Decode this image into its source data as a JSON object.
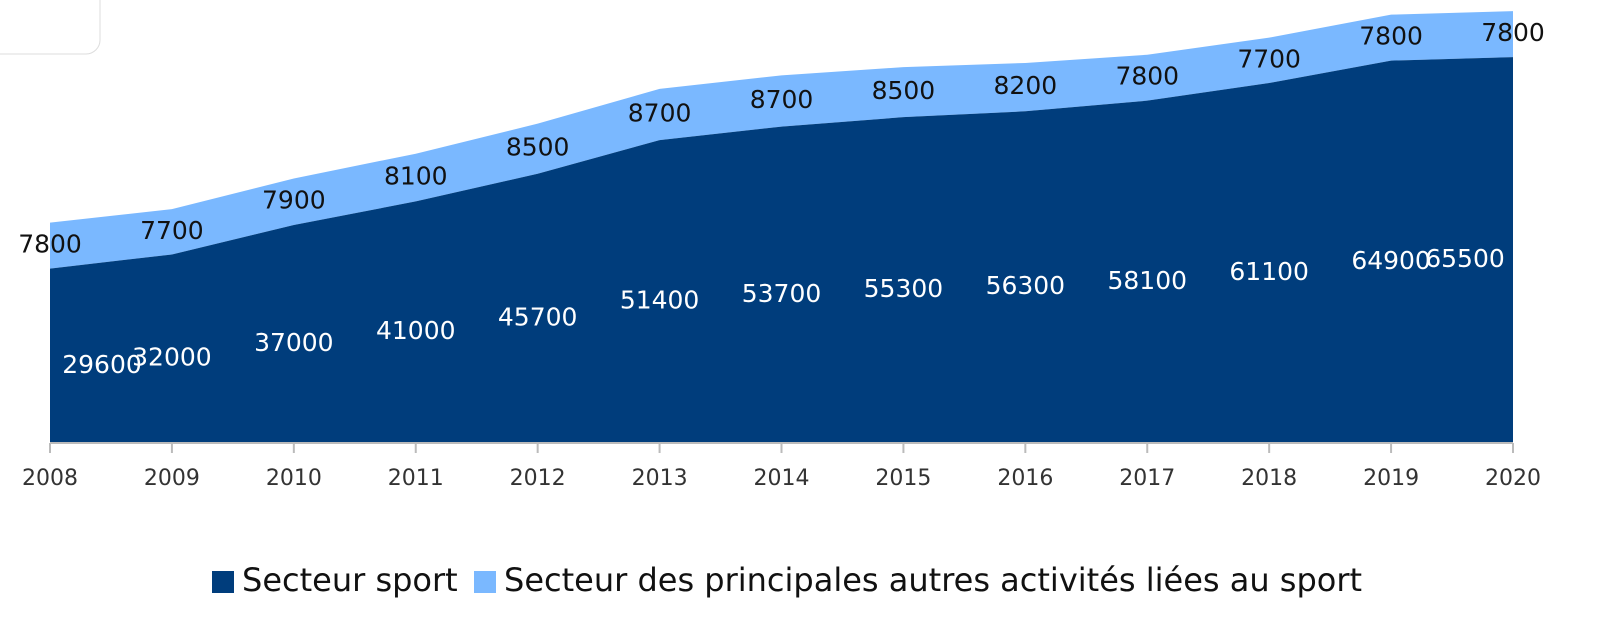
{
  "chart_data": {
    "type": "stacked_area",
    "x": [
      2008,
      2009,
      2010,
      2011,
      2012,
      2013,
      2014,
      2015,
      2016,
      2017,
      2018,
      2019,
      2020
    ],
    "xlim": [
      2008,
      2020
    ],
    "xticks": [
      2008,
      2009,
      2010,
      2011,
      2012,
      2013,
      2014,
      2015,
      2016,
      2017,
      2018,
      2019,
      2020
    ],
    "ylim": [
      0,
      74000
    ],
    "series": [
      {
        "name": "Secteur sport",
        "color": "#003d7c",
        "values": [
          29600,
          32000,
          37000,
          41000,
          45700,
          51400,
          53700,
          55300,
          56300,
          58100,
          61100,
          64900,
          65500
        ]
      },
      {
        "name": "Secteur des principales autres activités liées au sport",
        "color": "#7ab8ff",
        "values": [
          7800,
          7700,
          7900,
          8100,
          8500,
          8700,
          8700,
          8500,
          8200,
          7800,
          7700,
          7800,
          7800
        ]
      }
    ],
    "legend": "bottom"
  }
}
